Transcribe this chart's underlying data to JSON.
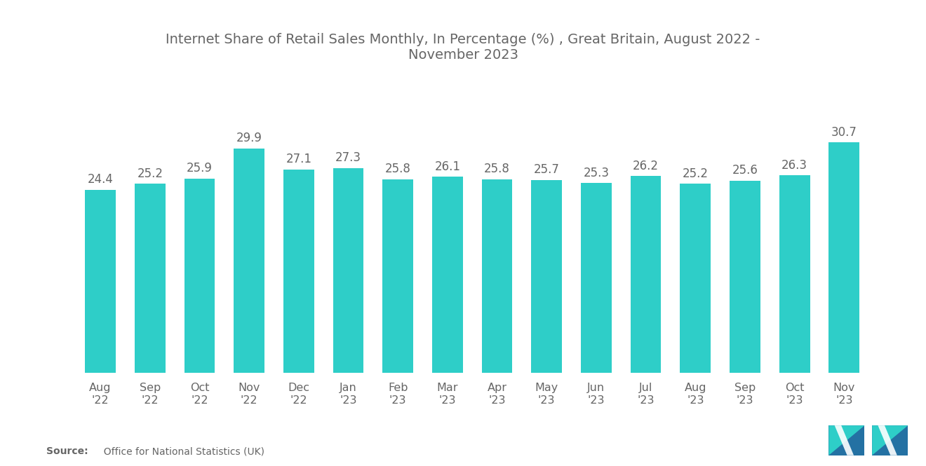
{
  "title": "Internet Share of Retail Sales Monthly, In Percentage (%) , Great Britain, August 2022 -\nNovember 2023",
  "categories": [
    "Aug\n'22",
    "Sep\n'22",
    "Oct\n'22",
    "Nov\n'22",
    "Dec\n'22",
    "Jan\n'23",
    "Feb\n'23",
    "Mar\n'23",
    "Apr\n'23",
    "May\n'23",
    "Jun\n'23",
    "Jul\n'23",
    "Aug\n'23",
    "Sep\n'23",
    "Oct\n'23",
    "Nov\n'23"
  ],
  "values": [
    24.4,
    25.2,
    25.9,
    29.9,
    27.1,
    27.3,
    25.8,
    26.1,
    25.8,
    25.7,
    25.3,
    26.2,
    25.2,
    25.6,
    26.3,
    30.7
  ],
  "bar_color": "#2ECEC8",
  "title_fontsize": 14,
  "tick_fontsize": 11.5,
  "value_fontsize": 12,
  "source_bold": "Source:",
  "source_normal": "  Office for National Statistics (UK)",
  "background_color": "#ffffff",
  "text_color": "#666666",
  "ylim": [
    0,
    36
  ],
  "logo_color1": "#2471A3",
  "logo_color2": "#1A5276",
  "logo_teal": "#2ECEC8"
}
